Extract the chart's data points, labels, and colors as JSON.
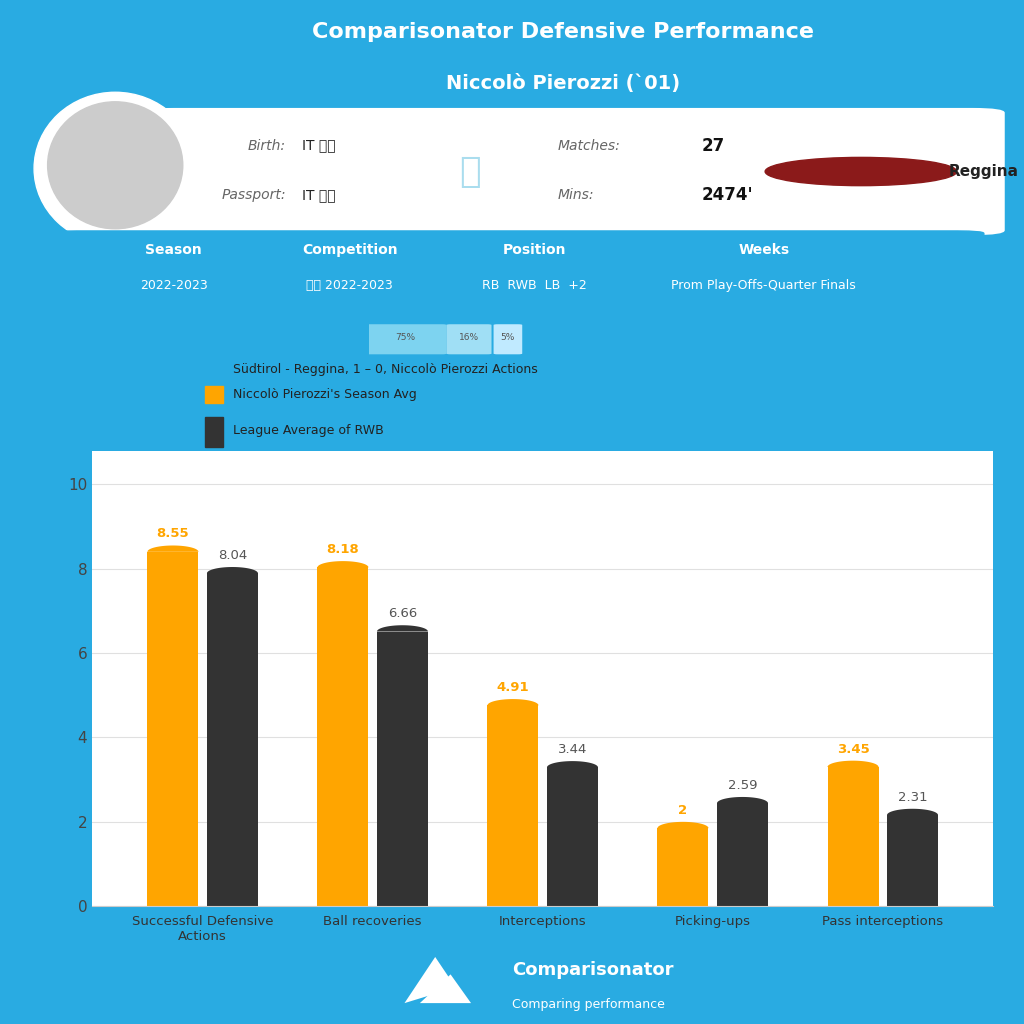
{
  "title_line1": "Comparisonator Defensive Performance",
  "title_line2": "Niccolò Pierozzi (`01)",
  "bg_color": "#29abe2",
  "card_bg": "#ffffff",
  "bar_categories": [
    "Successful Defensive\nActions",
    "Ball recoveries",
    "Interceptions",
    "Picking-ups",
    "Pass interceptions"
  ],
  "orange_values": [
    8.55,
    8.18,
    4.91,
    2.0,
    3.45
  ],
  "dark_values": [
    8.04,
    6.66,
    3.44,
    2.59,
    2.31
  ],
  "orange_color": "#FFA500",
  "dark_color": "#333333",
  "ylim": [
    0,
    10
  ],
  "yticks": [
    0,
    2,
    4,
    6,
    8,
    10
  ],
  "legend1": "Südtirol - Reggina, 1 – 0, Niccolò Pierozzi Actions",
  "legend2": "Niccolò Pierozzi's Season Avg",
  "legend3": "League Average of RWB",
  "legend1_color": "#29abe2",
  "legend2_color": "#FFA500",
  "legend3_color": "#333333"
}
